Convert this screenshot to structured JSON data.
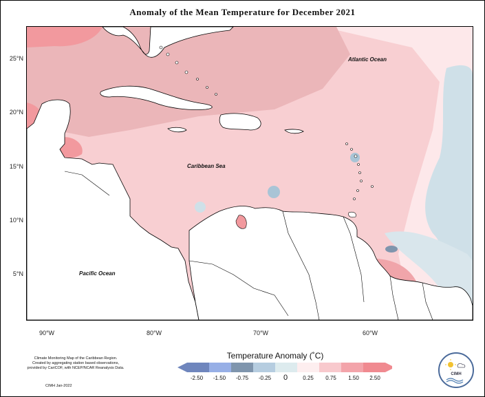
{
  "title": "Anomaly of the Mean Temperature for December 2021",
  "map": {
    "region": "Caribbean",
    "lat_labels": [
      "25°N",
      "20°N",
      "15°N",
      "10°N",
      "5°N"
    ],
    "lon_labels": [
      "90°W",
      "80°W",
      "70°W",
      "60°W"
    ],
    "ocean_labels": {
      "atlantic": "Atlantic Ocean",
      "caribbean": "Caribbean Sea",
      "pacific": "Pacific Ocean"
    }
  },
  "legend": {
    "title": "Temperature Anomaly (˚C)",
    "ticks": [
      "-2.50",
      "-1.50",
      "-0.75",
      "-0.25",
      "0",
      "0.25",
      "0.75",
      "1.50",
      "2.50"
    ],
    "colors": [
      "#6f86bd",
      "#97afe6",
      "#7f95ad",
      "#b6cde0",
      "#ddebee",
      "#fdeeef",
      "#f8c9cd",
      "#f3a4aa",
      "#f08a90"
    ]
  },
  "colors": {
    "warm_strong": "#f2999e",
    "warm_mid": "#ebb6b9",
    "warm_light": "#f8cfd2",
    "neutral": "#fdeaec",
    "cool_light": "#cfe0e8",
    "cool_mid": "#a9c4d6",
    "land": "#ffffff"
  },
  "credit": {
    "lines": [
      "Climate Monitoring Map of the Caribbean Region.",
      "Created by aggregating station based observations,",
      "provided by CariCOF, with NCEP/NCAR Reanalysis Data."
    ],
    "date": "CIMH  Jan-2022"
  },
  "logo": {
    "text": "CIMH",
    "icon": "cimh-logo-icon"
  }
}
